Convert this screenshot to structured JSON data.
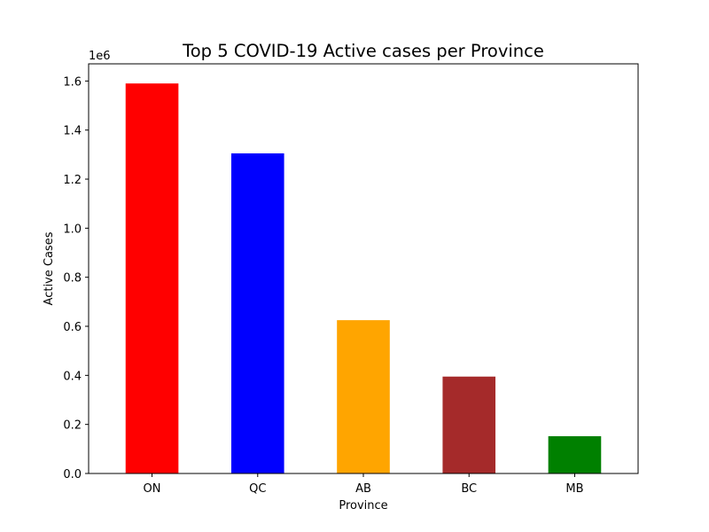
{
  "chart_data": {
    "type": "bar",
    "title": "Top 5 COVID-19 Active cases per Province",
    "xlabel": "Province",
    "ylabel": "Active Cases",
    "y_offset_label": "1e6",
    "categories": [
      "ON",
      "QC",
      "AB",
      "BC",
      "MB"
    ],
    "values": [
      1590000,
      1305000,
      625000,
      395000,
      152000
    ],
    "colors": [
      "#ff0000",
      "#0000ff",
      "#ffa500",
      "#a52a2a",
      "#008000"
    ],
    "ylim": [
      0,
      1670000
    ],
    "yticks": [
      0,
      200000,
      400000,
      600000,
      800000,
      1000000,
      1200000,
      1400000,
      1600000
    ],
    "ytick_labels": [
      "0.0",
      "0.2",
      "0.4",
      "0.6",
      "0.8",
      "1.0",
      "1.2",
      "1.4",
      "1.6"
    ],
    "grid": false,
    "legend": "none"
  }
}
